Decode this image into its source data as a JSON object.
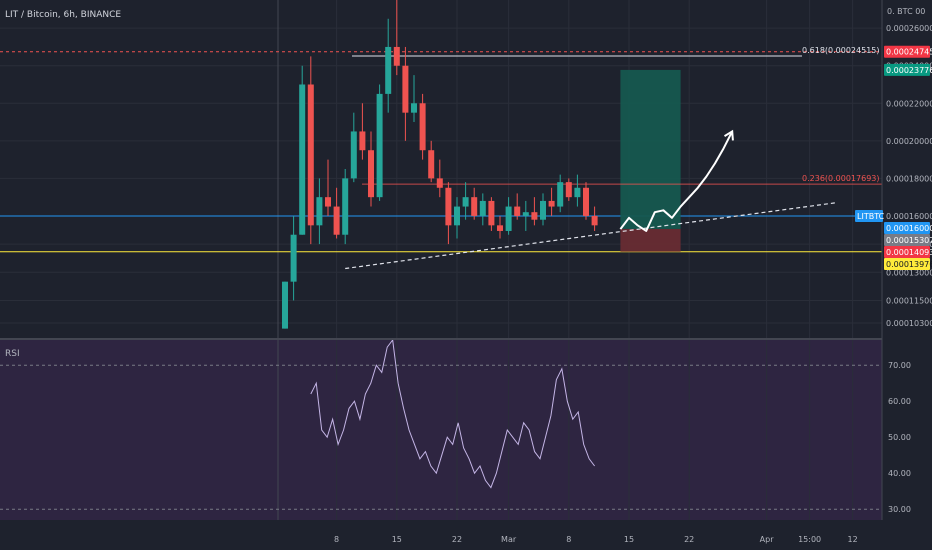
{
  "symbol_title": "LIT / Bitcoin, 6h, BINANCE",
  "axis_header": "0. BTC 00",
  "price_ticks": [
    "0.00026000",
    "0.00024000",
    "0.00022000",
    "0.00020000",
    "0.00018000",
    "0.00016000",
    "0.00014500",
    "0.00013000",
    "0.00011500",
    "0.00010300"
  ],
  "price_tick_values": [
    0.00026,
    0.00024,
    0.00022,
    0.0002,
    0.00018,
    0.00016,
    0.000145,
    0.00013,
    0.000115,
    0.000103
  ],
  "time_ticks": [
    {
      "label": "8",
      "col": 6
    },
    {
      "label": "15",
      "col": 13
    },
    {
      "label": "22",
      "col": 20
    },
    {
      "label": "Mar",
      "col": 26
    },
    {
      "label": "8",
      "col": 33
    },
    {
      "label": "15",
      "col": 40
    },
    {
      "label": "22",
      "col": 47
    },
    {
      "label": "Apr",
      "col": 56
    },
    {
      "label": "15:00",
      "col": 61
    },
    {
      "label": "12",
      "col": 66
    }
  ],
  "fib_618": {
    "label": "0.618(0.00024515)",
    "value": 0.00024515
  },
  "fib_236": {
    "label": "0.236(0.00017693)",
    "value": 0.00017693
  },
  "badges": [
    {
      "text": "0.00024745",
      "color": "#f23645",
      "value": 0.00024745
    },
    {
      "text": "0.00023776",
      "color": "#089981",
      "value": 0.00023776
    },
    {
      "text": "LITBTC",
      "color": "#2196f3",
      "value": 0.00016
    },
    {
      "text": "0.00016000",
      "color": "#2196f3",
      "value": 0.00016
    },
    {
      "text": "0.00015307",
      "color": "#787b86",
      "value": 0.00015307
    },
    {
      "text": "0.00014093",
      "color": "#f23645",
      "value": 0.00014093
    },
    {
      "text": "0.00013976",
      "color": "#ffeb3b",
      "value": 0.00013976
    }
  ],
  "rsi_label": "RSI",
  "rsi_ticks": [
    "70.00",
    "60.00",
    "50.00",
    "40.00",
    "30.00"
  ],
  "colors": {
    "bg": "#1e222d",
    "up": "#26a69a",
    "down": "#ef5350",
    "rsi_bg": "#2e2541",
    "rsi_line": "#c4b5e6",
    "fib": "#ef5350",
    "yellow": "#ffeb3b"
  },
  "chart_data": {
    "type": "candlestick",
    "candles": [
      [
        0.0001,
        0.000125,
        0.0001,
        0.000125
      ],
      [
        0.000125,
        0.00016,
        0.000115,
        0.00015
      ],
      [
        0.00015,
        0.00024,
        0.00015,
        0.00023
      ],
      [
        0.00023,
        0.000245,
        0.000145,
        0.000155
      ],
      [
        0.000155,
        0.00018,
        0.000145,
        0.00017
      ],
      [
        0.00017,
        0.00019,
        0.00016,
        0.000165
      ],
      [
        0.000165,
        0.000175,
        0.000148,
        0.00015
      ],
      [
        0.00015,
        0.000185,
        0.000145,
        0.00018
      ],
      [
        0.00018,
        0.000215,
        0.000178,
        0.000205
      ],
      [
        0.000205,
        0.00022,
        0.00019,
        0.000195
      ],
      [
        0.000195,
        0.000205,
        0.000165,
        0.00017
      ],
      [
        0.00017,
        0.00023,
        0.000168,
        0.000225
      ],
      [
        0.000225,
        0.000265,
        0.000215,
        0.00025
      ],
      [
        0.00025,
        0.000275,
        0.000235,
        0.00024
      ],
      [
        0.00024,
        0.00025,
        0.0002,
        0.000215
      ],
      [
        0.000215,
        0.000235,
        0.00021,
        0.00022
      ],
      [
        0.00022,
        0.000225,
        0.00019,
        0.000195
      ],
      [
        0.000195,
        0.0002,
        0.000178,
        0.00018
      ],
      [
        0.00018,
        0.00019,
        0.00017,
        0.000175
      ],
      [
        0.000175,
        0.000178,
        0.000145,
        0.000155
      ],
      [
        0.000155,
        0.00017,
        0.000148,
        0.000165
      ],
      [
        0.000165,
        0.000178,
        0.000158,
        0.00017
      ],
      [
        0.00017,
        0.000175,
        0.000158,
        0.00016
      ],
      [
        0.00016,
        0.000172,
        0.000155,
        0.000168
      ],
      [
        0.000168,
        0.00017,
        0.000152,
        0.000155
      ],
      [
        0.000155,
        0.00016,
        0.000148,
        0.000152
      ],
      [
        0.000152,
        0.00017,
        0.00015,
        0.000165
      ],
      [
        0.000165,
        0.000172,
        0.000158,
        0.00016
      ],
      [
        0.00016,
        0.000168,
        0.000152,
        0.000162
      ],
      [
        0.000162,
        0.00017,
        0.000155,
        0.000158
      ],
      [
        0.000158,
        0.000172,
        0.000155,
        0.000168
      ],
      [
        0.000168,
        0.000175,
        0.00016,
        0.000165
      ],
      [
        0.000165,
        0.000182,
        0.000162,
        0.000178
      ],
      [
        0.000178,
        0.00018,
        0.000168,
        0.00017
      ],
      [
        0.00017,
        0.000182,
        0.000165,
        0.000175
      ],
      [
        0.000175,
        0.000178,
        0.000158,
        0.00016
      ],
      [
        0.00016,
        0.000165,
        0.000152,
        0.000155
      ]
    ],
    "rsi": [
      62,
      65,
      52,
      50,
      55,
      48,
      52,
      58,
      60,
      55,
      62,
      65,
      70,
      68,
      75,
      77,
      65,
      58,
      52,
      48,
      44,
      46,
      42,
      40,
      45,
      50,
      48,
      54,
      47,
      44,
      40,
      42,
      38,
      36,
      40,
      46,
      52,
      50,
      48,
      54,
      52,
      46,
      44,
      50,
      56,
      66,
      69,
      60,
      55,
      57,
      48,
      44,
      42
    ],
    "ylim": [
      9.5e-05,
      0.000275
    ],
    "rsi_ylim": [
      27,
      77
    ],
    "trend_line": {
      "from": [
        7,
        0.000132
      ],
      "to": [
        64,
        0.000167
      ]
    },
    "position": {
      "entry": 0.00015307,
      "target": 0.00023776,
      "stop": 0.00014093,
      "from_col": 39,
      "to_col": 46
    },
    "projection_arrow": [
      [
        39,
        0.000153
      ],
      [
        40,
        0.000159
      ],
      [
        41,
        0.000155
      ],
      [
        42,
        0.000152
      ],
      [
        43,
        0.000162
      ],
      [
        44,
        0.000163
      ],
      [
        45,
        0.000159
      ],
      [
        46,
        0.000165
      ],
      [
        47,
        0.00017
      ],
      [
        48,
        0.000175
      ],
      [
        49,
        0.000181
      ],
      [
        50,
        0.000188
      ],
      [
        51,
        0.000196
      ],
      [
        52,
        0.000205
      ]
    ],
    "h_lines": [
      {
        "value": 0.00024745,
        "color": "#ef5350",
        "dashed": true
      },
      {
        "value": 0.00016,
        "color": "#2196f3",
        "dashed": false
      },
      {
        "value": 0.00014093,
        "color": "#ffeb3b",
        "dashed": false
      }
    ]
  }
}
